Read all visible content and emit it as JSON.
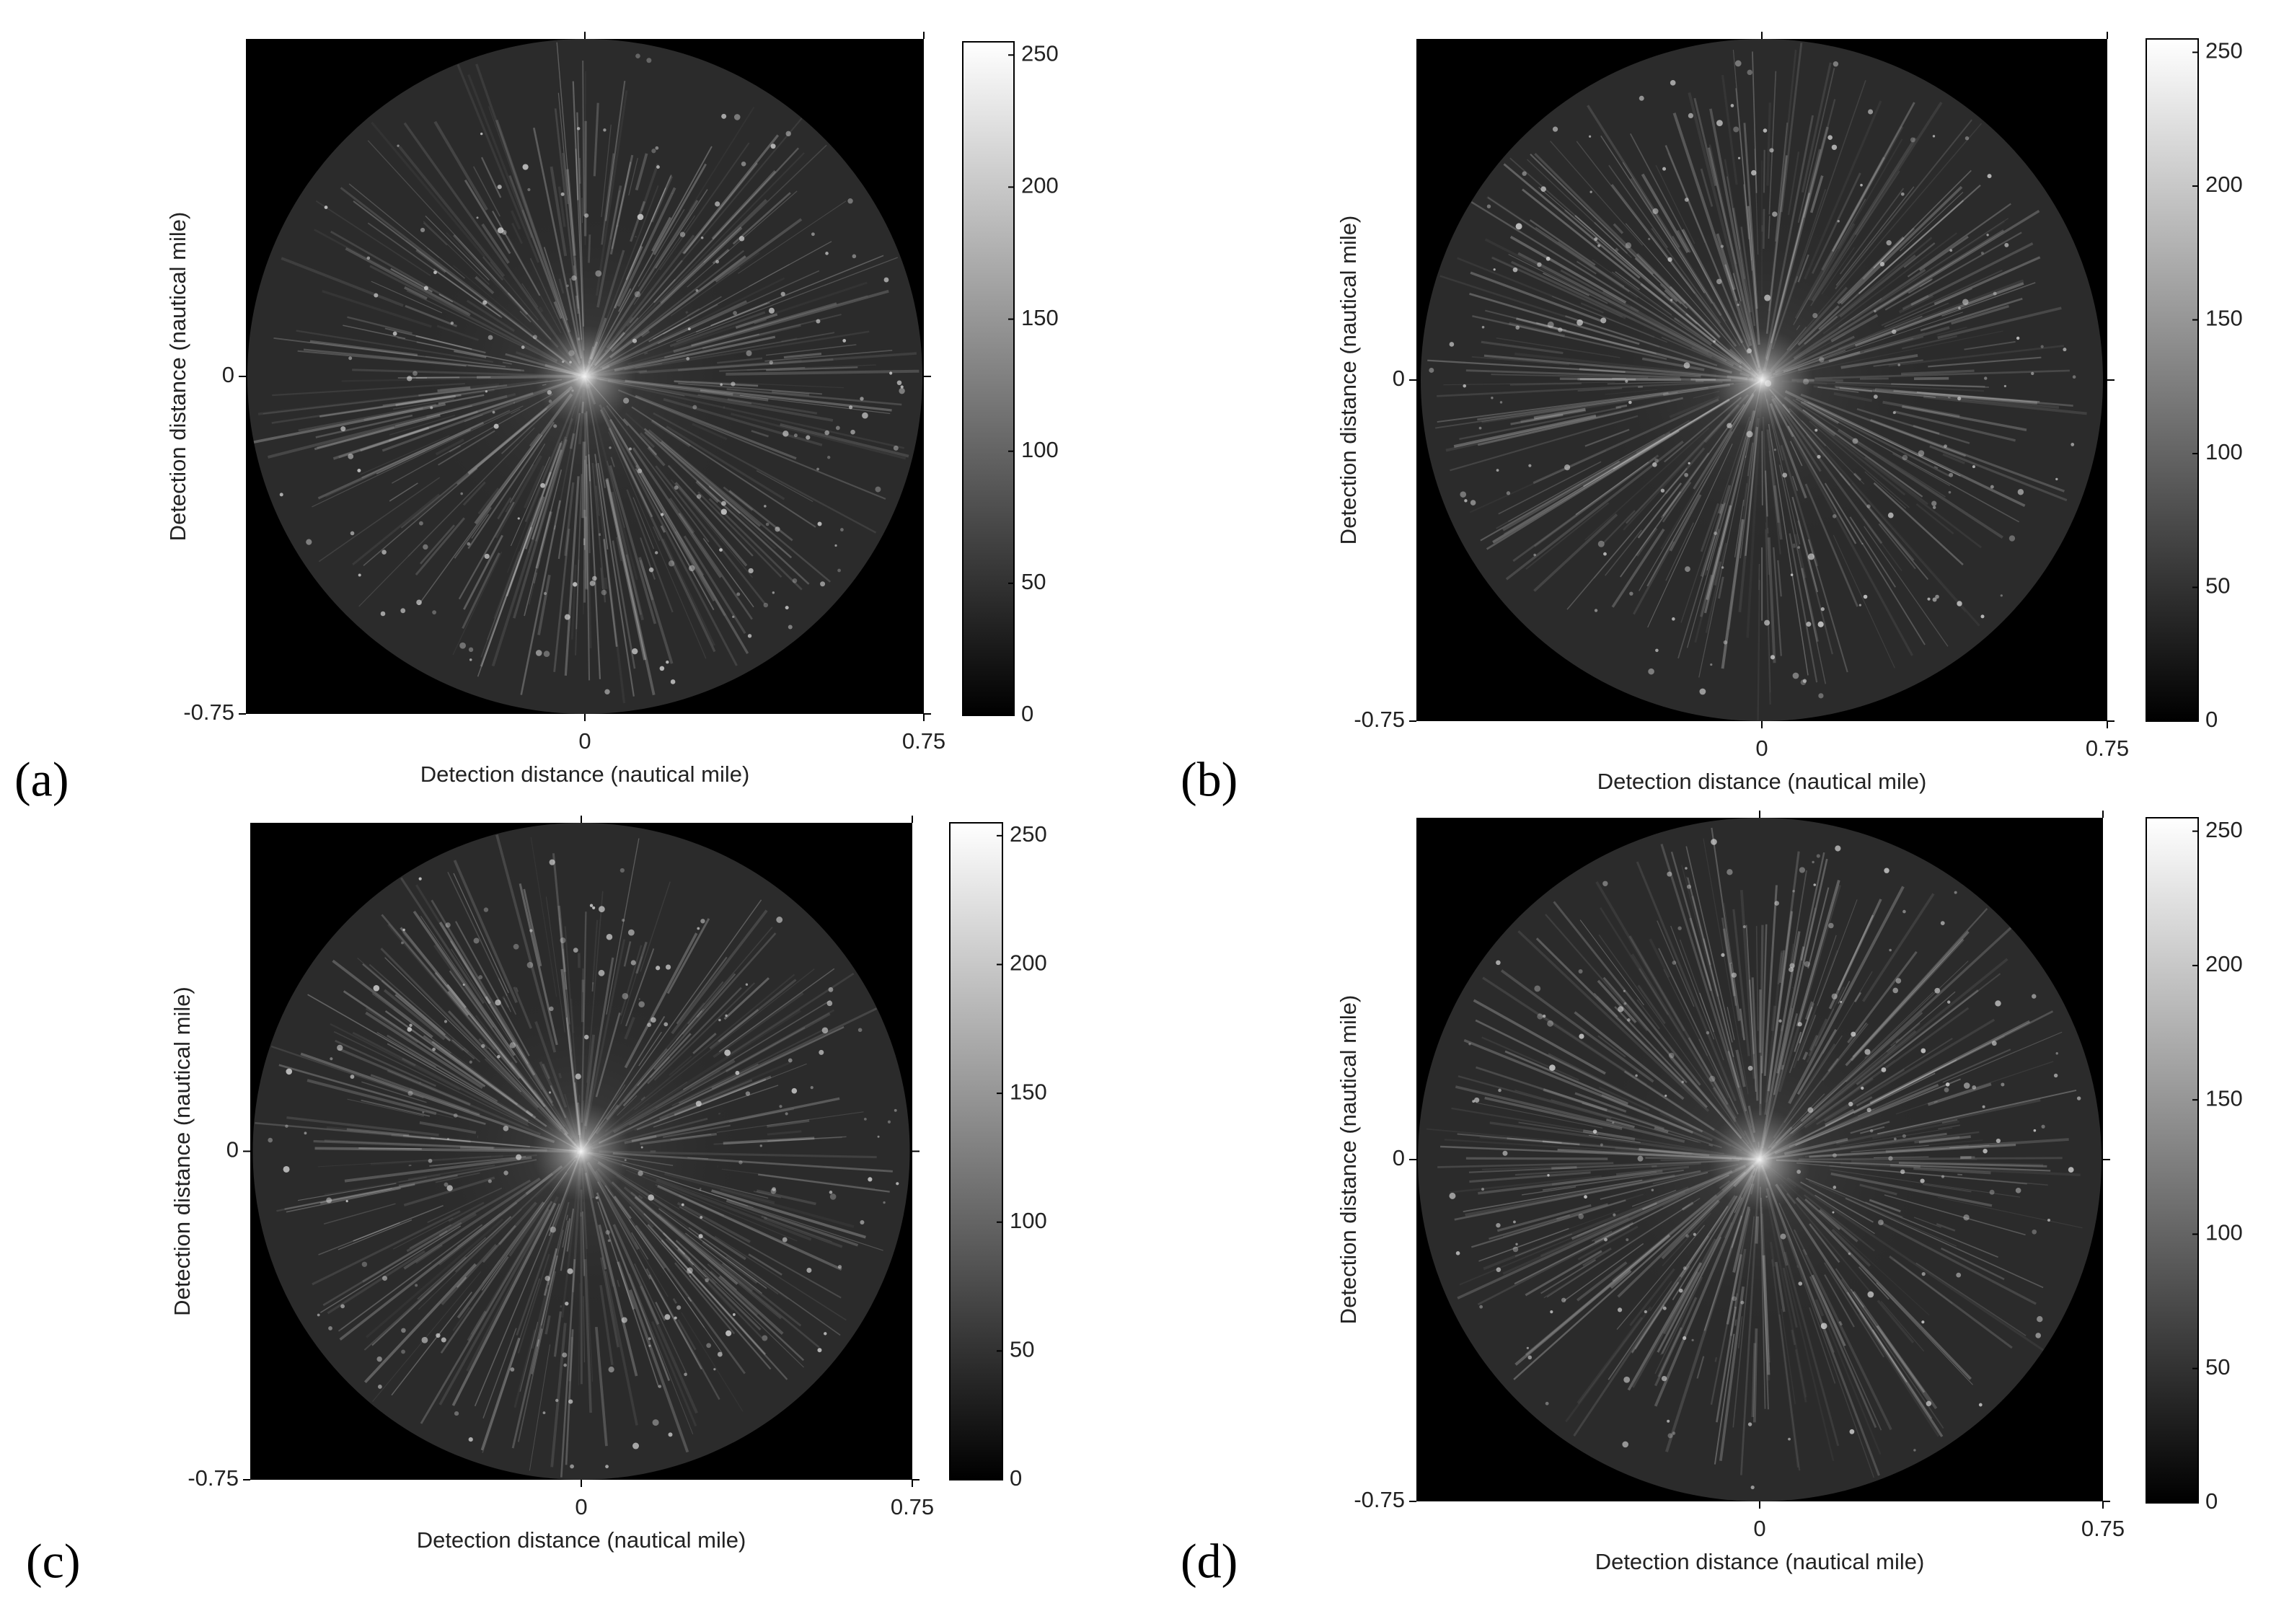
{
  "chart_data": [
    {
      "type": "image",
      "label": "(a)",
      "xlabel": "Detection distance (nautical mile)",
      "ylabel": "Detection distance (nautical mile)",
      "xlim": [
        -0.75,
        0.75
      ],
      "ylim": [
        -0.75,
        0.75
      ],
      "xticks": [
        0,
        0.75
      ],
      "yticks": [
        -0.75,
        0
      ],
      "clim": [
        0,
        255
      ],
      "cticks": [
        0,
        50,
        100,
        150,
        200,
        250
      ]
    },
    {
      "type": "image",
      "label": "(b)",
      "xlabel": "Detection distance (nautical mile)",
      "ylabel": "Detection distance (nautical mile)",
      "xlim": [
        -0.75,
        0.75
      ],
      "ylim": [
        -0.75,
        0.75
      ],
      "xticks": [
        0,
        0.75
      ],
      "yticks": [
        -0.75,
        0
      ],
      "clim": [
        0,
        255
      ],
      "cticks": [
        0,
        50,
        100,
        150,
        200,
        250
      ]
    },
    {
      "type": "image",
      "label": "(c)",
      "xlabel": "Detection distance (nautical mile)",
      "ylabel": "Detection distance (nautical mile)",
      "xlim": [
        -0.75,
        0.75
      ],
      "ylim": [
        -0.75,
        0.75
      ],
      "xticks": [
        0,
        0.75
      ],
      "yticks": [
        -0.75,
        0
      ],
      "clim": [
        0,
        255
      ],
      "cticks": [
        0,
        50,
        100,
        150,
        200,
        250
      ]
    },
    {
      "type": "image",
      "label": "(d)",
      "xlabel": "Detection distance (nautical mile)",
      "ylabel": "Detection distance (nautical mile)",
      "xlim": [
        -0.75,
        0.75
      ],
      "ylim": [
        -0.75,
        0.75
      ],
      "xticks": [
        0,
        0.75
      ],
      "yticks": [
        -0.75,
        0
      ],
      "clim": [
        0,
        255
      ],
      "cticks": [
        0,
        50,
        100,
        150,
        200,
        250
      ]
    }
  ]
}
